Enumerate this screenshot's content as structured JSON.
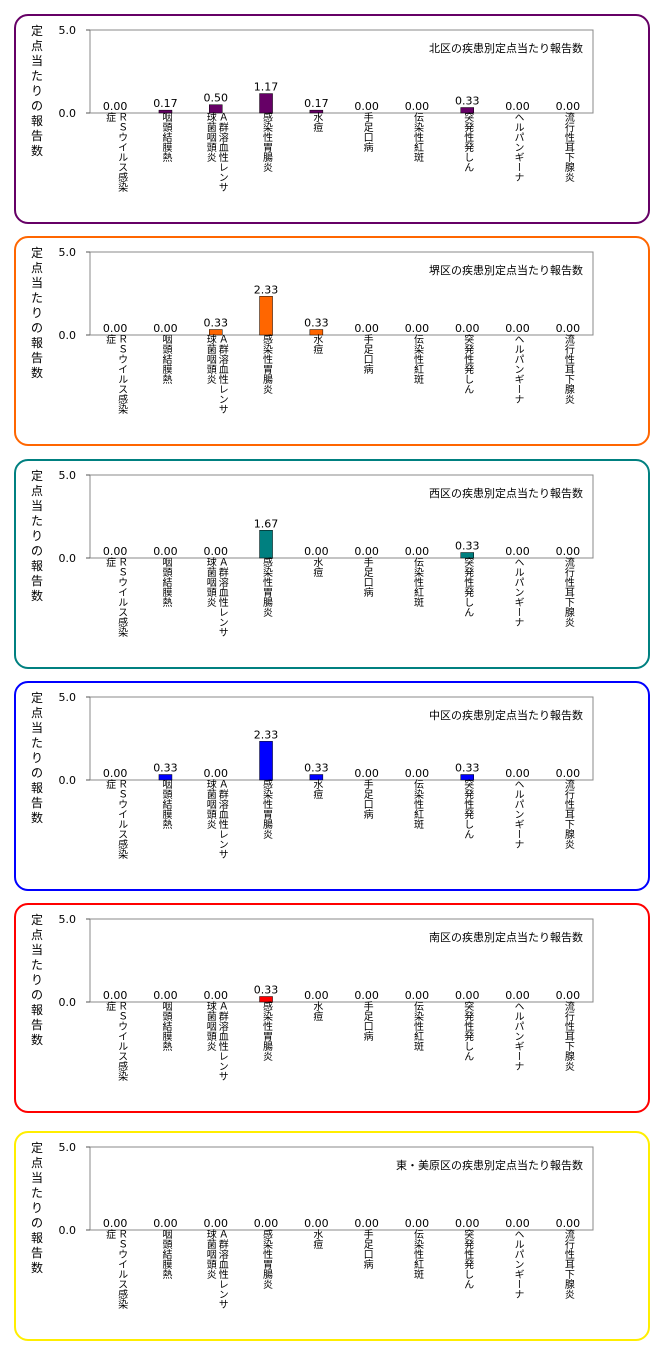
{
  "chart_data": [
    {
      "type": "bar",
      "title": "北区の疾患別定点当たり報告数",
      "ylabel": "定点当たりの報告数",
      "ylim": [
        0,
        5
      ],
      "yticks": [
        "0.0",
        "5.0"
      ],
      "color": "#660066",
      "categories": [
        [
          "ＲＳウイルス感染",
          "症"
        ],
        [
          "咽頭結膜熱"
        ],
        [
          "Ａ群溶血性レンサ",
          "球菌咽頭炎"
        ],
        [
          "感染性胃腸炎"
        ],
        [
          "水痘"
        ],
        [
          "手足口病"
        ],
        [
          "伝染性紅斑"
        ],
        [
          "突発性発しん"
        ],
        [
          "ヘルパンギーナ"
        ],
        [
          "流行性耳下腺炎"
        ]
      ],
      "values": [
        0.0,
        0.17,
        0.5,
        1.17,
        0.17,
        0.0,
        0.0,
        0.33,
        0.0,
        0.0
      ],
      "labels": [
        "0.00",
        "0.17",
        "0.50",
        "1.17",
        "0.17",
        "0.00",
        "0.00",
        "0.33",
        "0.00",
        "0.00"
      ]
    },
    {
      "type": "bar",
      "title": "堺区の疾患別定点当たり報告数",
      "ylabel": "定点当たりの報告数",
      "ylim": [
        0,
        5
      ],
      "yticks": [
        "0.0",
        "5.0"
      ],
      "color": "#ff6600",
      "categories": [
        [
          "ＲＳウイルス感染",
          "症"
        ],
        [
          "咽頭結膜熱"
        ],
        [
          "Ａ群溶血性レンサ",
          "球菌咽頭炎"
        ],
        [
          "感染性胃腸炎"
        ],
        [
          "水痘"
        ],
        [
          "手足口病"
        ],
        [
          "伝染性紅斑"
        ],
        [
          "突発性発しん"
        ],
        [
          "ヘルパンギーナ"
        ],
        [
          "流行性耳下腺炎"
        ]
      ],
      "values": [
        0.0,
        0.0,
        0.33,
        2.33,
        0.33,
        0.0,
        0.0,
        0.0,
        0.0,
        0.0
      ],
      "labels": [
        "0.00",
        "0.00",
        "0.33",
        "2.33",
        "0.33",
        "0.00",
        "0.00",
        "0.00",
        "0.00",
        "0.00"
      ]
    },
    {
      "type": "bar",
      "title": "西区の疾患別定点当たり報告数",
      "ylabel": "定点当たりの報告数",
      "ylim": [
        0,
        5
      ],
      "yticks": [
        "0.0",
        "5.0"
      ],
      "color": "#008080",
      "categories": [
        [
          "ＲＳウイルス感染",
          "症"
        ],
        [
          "咽頭結膜熱"
        ],
        [
          "Ａ群溶血性レンサ",
          "球菌咽頭炎"
        ],
        [
          "感染性胃腸炎"
        ],
        [
          "水痘"
        ],
        [
          "手足口病"
        ],
        [
          "伝染性紅斑"
        ],
        [
          "突発性発しん"
        ],
        [
          "ヘルパンギーナ"
        ],
        [
          "流行性耳下腺炎"
        ]
      ],
      "values": [
        0.0,
        0.0,
        0.0,
        1.67,
        0.0,
        0.0,
        0.0,
        0.33,
        0.0,
        0.0
      ],
      "labels": [
        "0.00",
        "0.00",
        "0.00",
        "1.67",
        "0.00",
        "0.00",
        "0.00",
        "0.33",
        "0.00",
        "0.00"
      ]
    },
    {
      "type": "bar",
      "title": "中区の疾患別定点当たり報告数",
      "ylabel": "定点当たりの報告数",
      "ylim": [
        0,
        5
      ],
      "yticks": [
        "0.0",
        "5.0"
      ],
      "color": "#0000ff",
      "categories": [
        [
          "ＲＳウイルス感染",
          "症"
        ],
        [
          "咽頭結膜熱"
        ],
        [
          "Ａ群溶血性レンサ",
          "球菌咽頭炎"
        ],
        [
          "感染性胃腸炎"
        ],
        [
          "水痘"
        ],
        [
          "手足口病"
        ],
        [
          "伝染性紅斑"
        ],
        [
          "突発性発しん"
        ],
        [
          "ヘルパンギーナ"
        ],
        [
          "流行性耳下腺炎"
        ]
      ],
      "values": [
        0.0,
        0.33,
        0.0,
        2.33,
        0.33,
        0.0,
        0.0,
        0.33,
        0.0,
        0.0
      ],
      "labels": [
        "0.00",
        "0.33",
        "0.00",
        "2.33",
        "0.33",
        "0.00",
        "0.00",
        "0.33",
        "0.00",
        "0.00"
      ]
    },
    {
      "type": "bar",
      "title": "南区の疾患別定点当たり報告数",
      "ylabel": "定点当たりの報告数",
      "ylim": [
        0,
        5
      ],
      "yticks": [
        "0.0",
        "5.0"
      ],
      "color": "#ff0000",
      "categories": [
        [
          "ＲＳウイルス感染",
          "症"
        ],
        [
          "咽頭結膜熱"
        ],
        [
          "Ａ群溶血性レンサ",
          "球菌咽頭炎"
        ],
        [
          "感染性胃腸炎"
        ],
        [
          "水痘"
        ],
        [
          "手足口病"
        ],
        [
          "伝染性紅斑"
        ],
        [
          "突発性発しん"
        ],
        [
          "ヘルパンギーナ"
        ],
        [
          "流行性耳下腺炎"
        ]
      ],
      "values": [
        0.0,
        0.0,
        0.0,
        0.33,
        0.0,
        0.0,
        0.0,
        0.0,
        0.0,
        0.0
      ],
      "labels": [
        "0.00",
        "0.00",
        "0.00",
        "0.33",
        "0.00",
        "0.00",
        "0.00",
        "0.00",
        "0.00",
        "0.00"
      ]
    },
    {
      "type": "bar",
      "title": "東・美原区の疾患別定点当たり報告数",
      "ylabel": "定点当たりの報告数",
      "ylim": [
        0,
        5
      ],
      "yticks": [
        "0.0",
        "5.0"
      ],
      "color": "#cccc00",
      "categories": [
        [
          "ＲＳウイルス感染",
          "症"
        ],
        [
          "咽頭結膜熱"
        ],
        [
          "Ａ群溶血性レンサ",
          "球菌咽頭炎"
        ],
        [
          "感染性胃腸炎"
        ],
        [
          "水痘"
        ],
        [
          "手足口病"
        ],
        [
          "伝染性紅斑"
        ],
        [
          "突発性発しん"
        ],
        [
          "ヘルパンギーナ"
        ],
        [
          "流行性耳下腺炎"
        ]
      ],
      "values": [
        0.0,
        0.0,
        0.0,
        0.0,
        0.0,
        0.0,
        0.0,
        0.0,
        0.0,
        0.0
      ],
      "labels": [
        "0.00",
        "0.00",
        "0.00",
        "0.00",
        "0.00",
        "0.00",
        "0.00",
        "0.00",
        "0.00",
        "0.00"
      ]
    }
  ],
  "panel_border_colors": [
    "#660066",
    "#ff6600",
    "#008080",
    "#0000ff",
    "#ff0000",
    "#ffee00"
  ]
}
